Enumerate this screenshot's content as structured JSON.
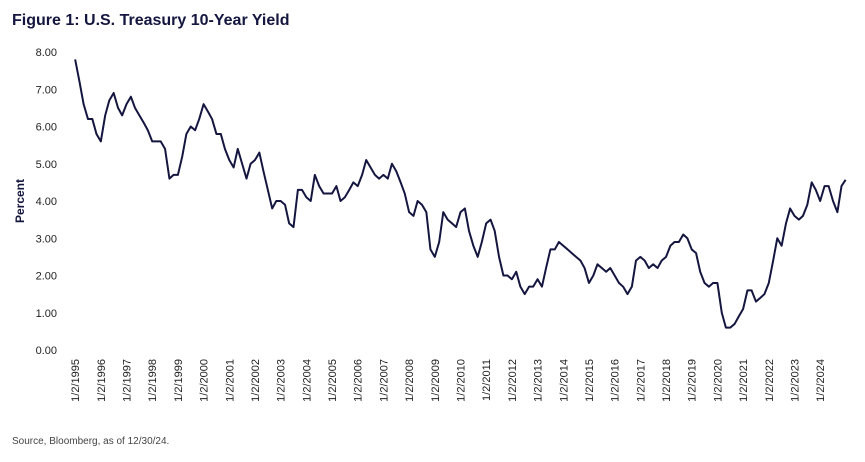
{
  "chart_data": {
    "type": "line",
    "title": "Figure 1: U.S. Treasury 10-Year Yield",
    "y_label": "Percent",
    "source": "Source, Bloomberg, as of 12/30/24.",
    "color": "#14163f",
    "xlim": [
      1994.8,
      2025.2
    ],
    "ylim": [
      0,
      8
    ],
    "yticks": [
      {
        "value": 0,
        "label": "0.00"
      },
      {
        "value": 1,
        "label": "1.00"
      },
      {
        "value": 2,
        "label": "2.00"
      },
      {
        "value": 3,
        "label": "3.00"
      },
      {
        "value": 4,
        "label": "4.00"
      },
      {
        "value": 5,
        "label": "5.00"
      },
      {
        "value": 6,
        "label": "6.00"
      },
      {
        "value": 7,
        "label": "7.00"
      },
      {
        "value": 8,
        "label": "8.00"
      }
    ],
    "xticks": [
      {
        "value": 1995,
        "label": "1/2/1995"
      },
      {
        "value": 1996,
        "label": "1/2/1996"
      },
      {
        "value": 1997,
        "label": "1/2/1997"
      },
      {
        "value": 1998,
        "label": "1/2/1998"
      },
      {
        "value": 1999,
        "label": "1/2/1999"
      },
      {
        "value": 2000,
        "label": "1/2/2000"
      },
      {
        "value": 2001,
        "label": "1/2/2001"
      },
      {
        "value": 2002,
        "label": "1/2/2002"
      },
      {
        "value": 2003,
        "label": "1/2/2003"
      },
      {
        "value": 2004,
        "label": "1/2/2004"
      },
      {
        "value": 2005,
        "label": "1/2/2005"
      },
      {
        "value": 2006,
        "label": "1/2/2006"
      },
      {
        "value": 2007,
        "label": "1/2/2007"
      },
      {
        "value": 2008,
        "label": "1/2/2008"
      },
      {
        "value": 2009,
        "label": "1/2/2009"
      },
      {
        "value": 2010,
        "label": "1/2/2010"
      },
      {
        "value": 2011,
        "label": "1/2/2011"
      },
      {
        "value": 2012,
        "label": "1/2/2012"
      },
      {
        "value": 2013,
        "label": "1/2/2013"
      },
      {
        "value": 2014,
        "label": "1/2/2014"
      },
      {
        "value": 2015,
        "label": "1/2/2015"
      },
      {
        "value": 2016,
        "label": "1/2/2016"
      },
      {
        "value": 2017,
        "label": "1/2/2017"
      },
      {
        "value": 2018,
        "label": "1/2/2018"
      },
      {
        "value": 2019,
        "label": "1/2/2019"
      },
      {
        "value": 2020,
        "label": "1/2/2020"
      },
      {
        "value": 2021,
        "label": "1/2/2021"
      },
      {
        "value": 2022,
        "label": "1/2/2022"
      },
      {
        "value": 2023,
        "label": "1/2/2023"
      },
      {
        "value": 2024,
        "label": "1/2/2024"
      }
    ],
    "x": [
      1995.0,
      1995.17,
      1995.33,
      1995.5,
      1995.67,
      1995.83,
      1996.0,
      1996.17,
      1996.33,
      1996.5,
      1996.67,
      1996.83,
      1997.0,
      1997.17,
      1997.33,
      1997.5,
      1997.67,
      1997.83,
      1998.0,
      1998.17,
      1998.33,
      1998.5,
      1998.67,
      1998.83,
      1999.0,
      1999.17,
      1999.33,
      1999.5,
      1999.67,
      1999.83,
      2000.0,
      2000.17,
      2000.33,
      2000.5,
      2000.67,
      2000.83,
      2001.0,
      2001.17,
      2001.33,
      2001.5,
      2001.67,
      2001.83,
      2002.0,
      2002.17,
      2002.33,
      2002.5,
      2002.67,
      2002.83,
      2003.0,
      2003.17,
      2003.33,
      2003.5,
      2003.67,
      2003.83,
      2004.0,
      2004.17,
      2004.33,
      2004.5,
      2004.67,
      2004.83,
      2005.0,
      2005.17,
      2005.33,
      2005.5,
      2005.67,
      2005.83,
      2006.0,
      2006.17,
      2006.33,
      2006.5,
      2006.67,
      2006.83,
      2007.0,
      2007.17,
      2007.33,
      2007.5,
      2007.67,
      2007.83,
      2008.0,
      2008.17,
      2008.33,
      2008.5,
      2008.67,
      2008.83,
      2009.0,
      2009.17,
      2009.33,
      2009.5,
      2009.67,
      2009.83,
      2010.0,
      2010.17,
      2010.33,
      2010.5,
      2010.67,
      2010.83,
      2011.0,
      2011.17,
      2011.33,
      2011.5,
      2011.67,
      2011.83,
      2012.0,
      2012.17,
      2012.33,
      2012.5,
      2012.67,
      2012.83,
      2013.0,
      2013.17,
      2013.33,
      2013.5,
      2013.67,
      2013.83,
      2014.0,
      2014.17,
      2014.33,
      2014.5,
      2014.67,
      2014.83,
      2015.0,
      2015.17,
      2015.33,
      2015.5,
      2015.67,
      2015.83,
      2016.0,
      2016.17,
      2016.33,
      2016.5,
      2016.67,
      2016.83,
      2017.0,
      2017.17,
      2017.33,
      2017.5,
      2017.67,
      2017.83,
      2018.0,
      2018.17,
      2018.33,
      2018.5,
      2018.67,
      2018.83,
      2019.0,
      2019.17,
      2019.33,
      2019.5,
      2019.67,
      2019.83,
      2020.0,
      2020.17,
      2020.33,
      2020.5,
      2020.67,
      2020.83,
      2021.0,
      2021.17,
      2021.33,
      2021.5,
      2021.67,
      2021.83,
      2022.0,
      2022.17,
      2022.33,
      2022.5,
      2022.67,
      2022.83,
      2023.0,
      2023.17,
      2023.33,
      2023.5,
      2023.67,
      2023.83,
      2024.0,
      2024.17,
      2024.33,
      2024.5,
      2024.67,
      2024.83,
      2024.99
    ],
    "values": [
      7.8,
      7.2,
      6.6,
      6.2,
      6.2,
      5.8,
      5.6,
      6.3,
      6.7,
      6.9,
      6.5,
      6.3,
      6.6,
      6.8,
      6.5,
      6.3,
      6.1,
      5.9,
      5.6,
      5.6,
      5.6,
      5.4,
      4.6,
      4.7,
      4.7,
      5.2,
      5.8,
      6.0,
      5.9,
      6.2,
      6.6,
      6.4,
      6.2,
      5.8,
      5.8,
      5.4,
      5.1,
      4.9,
      5.4,
      5.0,
      4.6,
      5.0,
      5.1,
      5.3,
      4.8,
      4.3,
      3.8,
      4.0,
      4.0,
      3.9,
      3.4,
      3.3,
      4.3,
      4.3,
      4.1,
      4.0,
      4.7,
      4.4,
      4.2,
      4.2,
      4.2,
      4.4,
      4.0,
      4.1,
      4.3,
      4.5,
      4.4,
      4.7,
      5.1,
      4.9,
      4.7,
      4.6,
      4.7,
      4.6,
      5.0,
      4.8,
      4.5,
      4.2,
      3.7,
      3.6,
      4.0,
      3.9,
      3.7,
      2.7,
      2.5,
      2.9,
      3.7,
      3.5,
      3.4,
      3.3,
      3.7,
      3.8,
      3.2,
      2.8,
      2.5,
      2.9,
      3.4,
      3.5,
      3.2,
      2.5,
      2.0,
      2.0,
      1.9,
      2.1,
      1.7,
      1.5,
      1.7,
      1.7,
      1.9,
      1.7,
      2.2,
      2.7,
      2.7,
      2.9,
      2.8,
      2.7,
      2.6,
      2.5,
      2.4,
      2.2,
      1.8,
      2.0,
      2.3,
      2.2,
      2.1,
      2.2,
      2.0,
      1.8,
      1.7,
      1.5,
      1.7,
      2.4,
      2.5,
      2.4,
      2.2,
      2.3,
      2.2,
      2.4,
      2.5,
      2.8,
      2.9,
      2.9,
      3.1,
      3.0,
      2.7,
      2.6,
      2.1,
      1.8,
      1.7,
      1.8,
      1.8,
      1.0,
      0.6,
      0.6,
      0.7,
      0.9,
      1.1,
      1.6,
      1.6,
      1.3,
      1.4,
      1.5,
      1.8,
      2.4,
      3.0,
      2.8,
      3.4,
      3.8,
      3.6,
      3.5,
      3.6,
      3.9,
      4.5,
      4.3,
      4.0,
      4.4,
      4.4,
      4.0,
      3.7,
      4.4,
      4.57
    ]
  }
}
